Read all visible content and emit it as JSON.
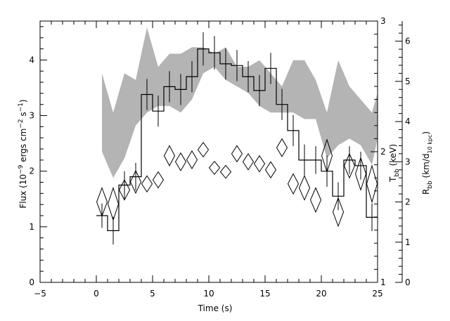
{
  "chart_data": {
    "type": "line",
    "x_axis": {
      "label": "Time (s)",
      "range": [
        -5,
        25
      ],
      "ticks": [
        -5,
        0,
        5,
        10,
        15,
        20,
        25
      ]
    },
    "y_axis_left": {
      "label_main": "Flux (10",
      "label_exp1": "−9",
      "label_mid": " ergs cm",
      "label_exp2": "−2",
      "label_mid2": " s",
      "label_exp3": "−1",
      "label_end": ")",
      "range": [
        0,
        4.7
      ],
      "ticks": [
        0,
        1,
        2,
        3,
        4
      ]
    },
    "y_axis_right_temperature": {
      "label_main": "T",
      "label_sub": "bb",
      "label_end": " (keV)",
      "range": [
        1,
        3
      ],
      "ticks": [
        1,
        2,
        3
      ]
    },
    "y_axis_right_radius": {
      "label_main": "R",
      "label_sub": "bb",
      "label_mid": " (km/d",
      "label_sub2": "10 kpc",
      "label_end": ")",
      "range": [
        0,
        6.5
      ],
      "ticks": [
        0,
        1,
        2,
        3,
        4,
        5,
        6
      ]
    },
    "flux_histogram": {
      "time_bin_edges": [
        0,
        1,
        2,
        3,
        4,
        5,
        6,
        7,
        8,
        9,
        10,
        11,
        12,
        13,
        14,
        15,
        16,
        17,
        18,
        19,
        20,
        21,
        22,
        23,
        24,
        25
      ],
      "flux": [
        1.2,
        0.93,
        1.75,
        1.9,
        3.38,
        3.08,
        3.52,
        3.47,
        3.7,
        4.2,
        4.13,
        3.93,
        3.9,
        3.7,
        3.45,
        3.85,
        3.2,
        2.73,
        2.2,
        2.2,
        2.0,
        1.55,
        2.2,
        2.1,
        1.17
      ],
      "flux_error": [
        0.22,
        0.25,
        0.25,
        0.25,
        0.28,
        0.28,
        0.28,
        0.28,
        0.28,
        0.3,
        0.3,
        0.28,
        0.28,
        0.28,
        0.28,
        0.28,
        0.28,
        0.28,
        0.28,
        0.25,
        0.28,
        0.25,
        0.25,
        0.25,
        0.25
      ]
    },
    "temperature_band": {
      "time": [
        0.5,
        1.5,
        2.5,
        3.5,
        4.5,
        5.5,
        6.5,
        7.5,
        8.5,
        9.5,
        10.5,
        11.5,
        12.5,
        13.5,
        14.5,
        15.5,
        16.5,
        17.5,
        18.5,
        19.5,
        20.5,
        21.5,
        22.5,
        23.5,
        24.5,
        25
      ],
      "t_low": [
        2.0,
        1.8,
        1.95,
        2.2,
        2.3,
        2.35,
        2.35,
        2.3,
        2.4,
        2.6,
        2.65,
        2.55,
        2.5,
        2.45,
        2.35,
        2.3,
        2.3,
        2.3,
        2.25,
        2.25,
        1.95,
        2.05,
        2.1,
        2.05,
        1.9,
        2.1
      ],
      "t_high": [
        2.6,
        2.3,
        2.6,
        2.55,
        2.95,
        2.65,
        2.75,
        2.75,
        2.8,
        2.8,
        2.75,
        2.8,
        2.65,
        2.65,
        2.7,
        2.6,
        2.5,
        2.7,
        2.7,
        2.55,
        2.3,
        2.7,
        2.5,
        2.4,
        2.3,
        2.45
      ]
    },
    "radius_points": {
      "time": [
        0.5,
        1.5,
        2.5,
        3.5,
        4.5,
        5.5,
        6.5,
        7.5,
        8.5,
        9.5,
        10.5,
        11.5,
        12.5,
        13.5,
        14.5,
        15.5,
        16.5,
        17.5,
        18.5,
        19.5,
        20.5,
        21.5,
        22.5,
        23.5,
        24.5
      ],
      "radius": [
        2.0,
        1.95,
        2.3,
        2.5,
        2.45,
        2.55,
        3.15,
        3.0,
        3.05,
        3.3,
        2.85,
        2.75,
        3.2,
        3.0,
        2.95,
        2.8,
        3.35,
        2.45,
        2.35,
        2.05,
        3.15,
        1.75,
        2.9,
        2.7,
        2.45
      ],
      "radius_error": [
        0.35,
        0.4,
        0.25,
        0.28,
        0.2,
        0.2,
        0.25,
        0.22,
        0.22,
        0.18,
        0.16,
        0.16,
        0.2,
        0.2,
        0.2,
        0.2,
        0.22,
        0.25,
        0.3,
        0.3,
        0.4,
        0.35,
        0.3,
        0.4,
        0.45
      ]
    }
  }
}
